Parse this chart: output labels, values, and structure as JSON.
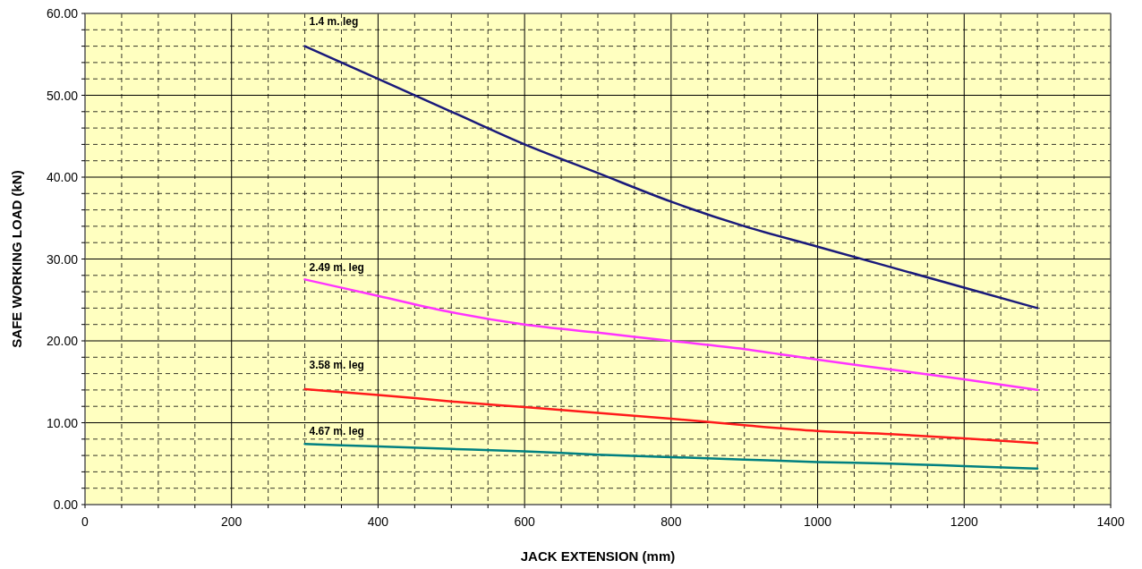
{
  "chart_data": {
    "type": "line",
    "xlabel": "JACK EXTENSION (mm)",
    "ylabel": "SAFE WORKING LOAD (kN)",
    "x": [
      300,
      400,
      500,
      600,
      700,
      800,
      900,
      1000,
      1100,
      1200,
      1300
    ],
    "series": [
      {
        "name": "1.4 m. leg",
        "color": "#1a1a7a",
        "values": [
          56,
          52,
          48,
          44,
          40.5,
          37,
          34,
          31.5,
          29,
          26.5,
          24
        ]
      },
      {
        "name": "2.49 m. leg",
        "color": "#ff33ff",
        "values": [
          27.5,
          25.5,
          23.5,
          22,
          21,
          20,
          19,
          17.7,
          16.5,
          15.3,
          14
        ]
      },
      {
        "name": "3.58 m. leg",
        "color": "#ff1a1a",
        "values": [
          14.1,
          13.4,
          12.6,
          11.9,
          11.2,
          10.5,
          9.7,
          9,
          8.6,
          8.1,
          7.5
        ]
      },
      {
        "name": "4.67 m. leg",
        "color": "#008080",
        "values": [
          7.4,
          7.1,
          6.8,
          6.5,
          6.1,
          5.8,
          5.5,
          5.2,
          5,
          4.7,
          4.4
        ]
      }
    ],
    "xlim": [
      0,
      1400
    ],
    "xticks": [
      0,
      {
        "value": 50,
        "label": null
      },
      {
        "value": 100,
        "label": null
      },
      {
        "value": 150,
        "label": null
      },
      200,
      {
        "value": 250,
        "label": null
      },
      {
        "value": 300,
        "label": null
      },
      {
        "value": 350,
        "label": null
      },
      400,
      {
        "value": 450,
        "label": null
      },
      {
        "value": 500,
        "label": null
      },
      {
        "value": 550,
        "label": null
      },
      600,
      {
        "value": 650,
        "label": null
      },
      {
        "value": 700,
        "label": null
      },
      {
        "value": 750,
        "label": null
      },
      800,
      {
        "value": 850,
        "label": null
      },
      {
        "value": 900,
        "label": null
      },
      {
        "value": 950,
        "label": null
      },
      1000,
      {
        "value": 1050,
        "label": null
      },
      {
        "value": 1100,
        "label": null
      },
      {
        "value": 1150,
        "label": null
      },
      1200,
      {
        "value": 1250,
        "label": null
      },
      {
        "value": 1300,
        "label": null
      },
      {
        "value": 1350,
        "label": null
      },
      1400
    ],
    "ylim": [
      0,
      60
    ],
    "yticks": [
      {
        "value": 0,
        "label": "0.00"
      },
      {
        "value": 2,
        "label": null
      },
      {
        "value": 4,
        "label": null
      },
      {
        "value": 6,
        "label": null
      },
      {
        "value": 8,
        "label": null
      },
      {
        "value": 10,
        "label": "10.00"
      },
      {
        "value": 12,
        "label": null
      },
      {
        "value": 14,
        "label": null
      },
      {
        "value": 16,
        "label": null
      },
      {
        "value": 18,
        "label": null
      },
      {
        "value": 20,
        "label": "20.00"
      },
      {
        "value": 22,
        "label": null
      },
      {
        "value": 24,
        "label": null
      },
      {
        "value": 26,
        "label": null
      },
      {
        "value": 28,
        "label": null
      },
      {
        "value": 30,
        "label": "30.00"
      },
      {
        "value": 32,
        "label": null
      },
      {
        "value": 34,
        "label": null
      },
      {
        "value": 36,
        "label": null
      },
      {
        "value": 38,
        "label": null
      },
      {
        "value": 40,
        "label": "40.00"
      },
      {
        "value": 42,
        "label": null
      },
      {
        "value": 44,
        "label": null
      },
      {
        "value": 46,
        "label": null
      },
      {
        "value": 48,
        "label": null
      },
      {
        "value": 50,
        "label": "50.00"
      },
      {
        "value": 52,
        "label": null
      },
      {
        "value": 54,
        "label": null
      },
      {
        "value": 56,
        "label": null
      },
      {
        "value": 58,
        "label": null
      },
      {
        "value": 60,
        "label": "60.00"
      }
    ],
    "grid": true,
    "marker": "none",
    "line_style": "solid"
  }
}
